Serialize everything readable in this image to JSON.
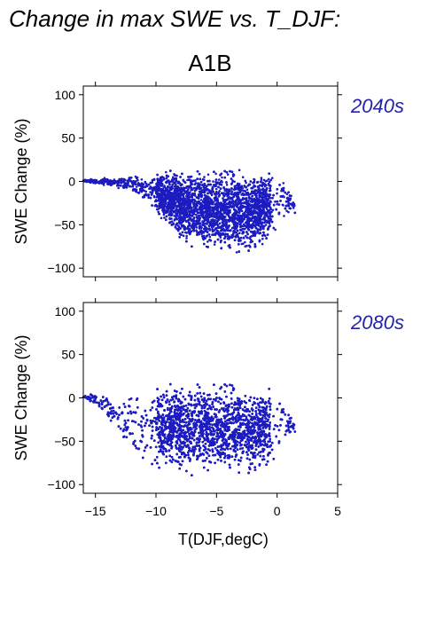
{
  "figure": {
    "title": "Change in max SWE vs. T_DJF:",
    "scenario": "A1B"
  },
  "colors": {
    "points": "#1c1cc0",
    "period_label": "#2323a8",
    "axes": "#000000"
  },
  "chart_data": [
    {
      "type": "scatter",
      "title": "2040s",
      "xlabel": "",
      "ylabel": "SWE Change (%)",
      "xlim": [
        -16,
        5
      ],
      "ylim": [
        -110,
        110
      ],
      "yticks": [
        -100,
        -50,
        0,
        50,
        100
      ],
      "xticks": [
        -15,
        -10,
        -5,
        0,
        5
      ],
      "xticklabels_shown": false,
      "grid": false,
      "envelope": {
        "x": [
          -16,
          -14,
          -12,
          -11,
          -10,
          -9,
          -8,
          -7,
          -6,
          -5,
          -4,
          -3,
          -2,
          -1,
          0,
          0.5,
          1,
          1.5
        ],
        "upper": [
          2,
          6,
          8,
          10,
          12,
          16,
          20,
          20,
          20,
          20,
          20,
          18,
          18,
          16,
          12,
          6,
          -8,
          -25
        ],
        "lower": [
          -1,
          -6,
          -14,
          -24,
          -36,
          -58,
          -74,
          -80,
          -85,
          -88,
          -90,
          -88,
          -85,
          -80,
          -65,
          -52,
          -40,
          -38
        ]
      }
    },
    {
      "type": "scatter",
      "title": "2080s",
      "xlabel": "T(DJF,degC)",
      "ylabel": "SWE Change (%)",
      "xlim": [
        -16,
        5
      ],
      "ylim": [
        -110,
        110
      ],
      "yticks": [
        -100,
        -50,
        0,
        50,
        100
      ],
      "xticks": [
        -15,
        -10,
        -5,
        0,
        5
      ],
      "xticklabels_shown": true,
      "grid": false,
      "envelope": {
        "x": [
          -16,
          -15,
          -14,
          -13,
          -12,
          -11,
          -10,
          -9,
          -8,
          -7,
          -6,
          -5,
          -4,
          -3,
          -2,
          -1,
          0,
          0.5,
          1,
          1.5
        ],
        "upper": [
          2,
          8,
          12,
          12,
          14,
          16,
          20,
          22,
          24,
          25,
          26,
          25,
          24,
          22,
          20,
          18,
          16,
          5,
          -15,
          -30
        ],
        "lower": [
          -1,
          -10,
          -30,
          -55,
          -75,
          -85,
          -88,
          -92,
          -93,
          -95,
          -95,
          -95,
          -95,
          -94,
          -93,
          -92,
          -90,
          -70,
          -50,
          -40
        ]
      }
    }
  ]
}
